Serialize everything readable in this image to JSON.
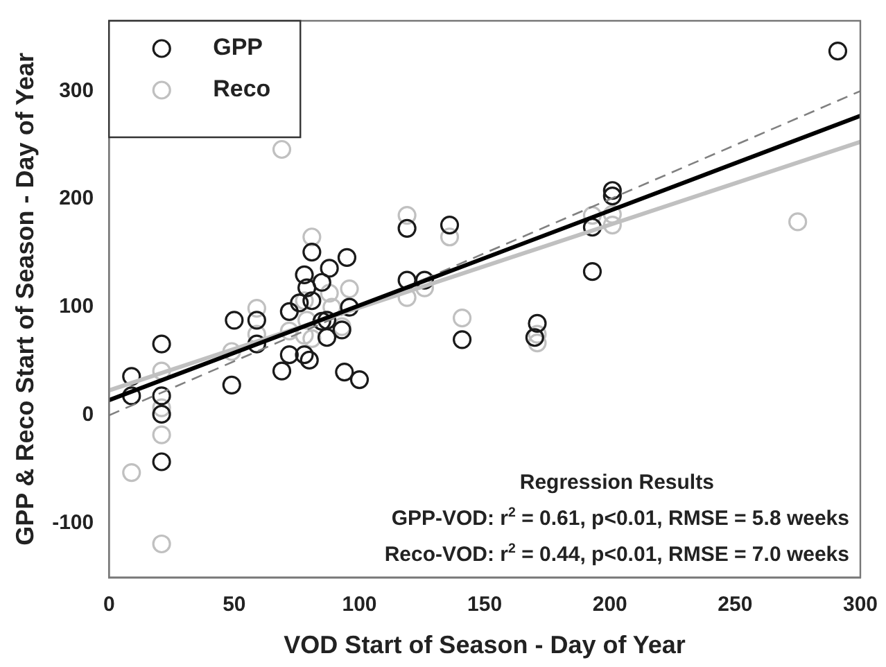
{
  "chart_data": {
    "type": "scatter",
    "xlabel": "VOD Start of Season - Day of Year",
    "ylabel": "GPP & Reco Start of Season - Day of Year",
    "xlim": [
      0,
      300
    ],
    "xticks": [
      0,
      50,
      100,
      150,
      200,
      250,
      300
    ],
    "ylim": [
      -150,
      365
    ],
    "yticks": [
      -100,
      0,
      100,
      200,
      300
    ],
    "grid": false,
    "legend": "top left",
    "marker": "circle",
    "series": [
      {
        "name": "GPP",
        "color": "#1a1a1a",
        "x": [
          9,
          9,
          21,
          21,
          21,
          21,
          50,
          49,
          59,
          59,
          69,
          72,
          72,
          78,
          79,
          78,
          80,
          81,
          81,
          76,
          85,
          85,
          87,
          88,
          87,
          93,
          95,
          96,
          94,
          100,
          119,
          119,
          126,
          136,
          141,
          171,
          170,
          193,
          193,
          201,
          201,
          291
        ],
        "values": [
          36,
          18,
          66,
          18,
          1,
          -43,
          88,
          28,
          88,
          66,
          41,
          96,
          56,
          130,
          118,
          56,
          51,
          151,
          106,
          104,
          123,
          87,
          88,
          136,
          72,
          79,
          146,
          100,
          40,
          33,
          173,
          125,
          125,
          176,
          70,
          85,
          72,
          174,
          133,
          208,
          203,
          337
        ]
      },
      {
        "name": "Reco",
        "color": "#c0c0c0",
        "x": [
          9,
          21,
          21,
          21,
          21,
          49,
          59,
          59,
          69,
          72,
          78,
          78,
          81,
          79,
          81,
          88,
          89,
          96,
          93,
          119,
          119,
          126,
          136,
          141,
          171,
          171,
          193,
          201,
          201,
          275
        ],
        "values": [
          -53,
          41,
          7,
          -18,
          -119,
          59,
          99,
          75,
          246,
          78,
          74,
          106,
          165,
          88,
          71,
          113,
          100,
          117,
          82,
          185,
          109,
          118,
          165,
          90,
          75,
          67,
          185,
          186,
          176,
          179
        ]
      },
      {
        "type": "line",
        "color": "#000000",
        "x": [
          0,
          300
        ],
        "values": [
          14,
          277
        ],
        "marker": "none",
        "line_style": "solid"
      },
      {
        "type": "line",
        "color": "#c0c0c0",
        "x": [
          0,
          300
        ],
        "values": [
          23,
          253
        ],
        "marker": "none",
        "line_style": "solid"
      },
      {
        "type": "line",
        "color": "#808080",
        "x": [
          0,
          300
        ],
        "values": [
          0,
          300
        ],
        "marker": "none",
        "line_style": "dashed"
      }
    ],
    "annotations": [
      "Regression Results",
      "GPP-VOD: r$^{2}$ = 0.61, p<0.01, RMSE = 5.8 weeks",
      "Reco-VOD: r$^{2}$ = 0.44, p<0.01, RMSE = 7.0 weeks"
    ]
  }
}
